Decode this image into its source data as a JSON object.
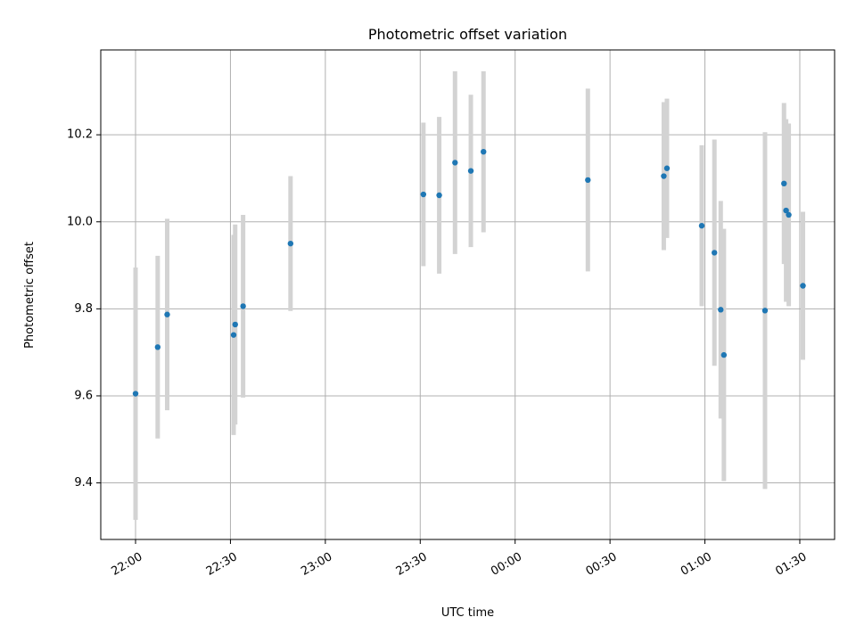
{
  "chart_data": {
    "type": "scatter",
    "title": "Photometric offset variation",
    "xlabel": "UTC time",
    "ylabel": "Photometric offset",
    "grid": true,
    "x_unit": "time (HH:MM), spanning midnight",
    "xlim": [
      "21:49",
      "01:41"
    ],
    "ylim": [
      9.27,
      10.395
    ],
    "x_ticks": [
      "22:00",
      "22:30",
      "23:00",
      "23:30",
      "00:00",
      "00:30",
      "01:00",
      "01:30"
    ],
    "y_ticks": [
      "9.4",
      "9.6",
      "9.8",
      "10.0",
      "10.2"
    ],
    "colors": {
      "point": "#1f77b4",
      "errorbar": "#d3d3d3"
    },
    "points": [
      {
        "x": "22:00",
        "y": 9.605,
        "yerr": 0.29
      },
      {
        "x": "22:07",
        "y": 9.712,
        "yerr": 0.21
      },
      {
        "x": "22:10",
        "y": 9.787,
        "yerr": 0.22
      },
      {
        "x": "22:31",
        "y": 9.74,
        "yerr": 0.23
      },
      {
        "x": "22:31:30",
        "y": 9.764,
        "yerr": 0.23
      },
      {
        "x": "22:34",
        "y": 9.806,
        "yerr": 0.21
      },
      {
        "x": "22:49",
        "y": 9.95,
        "yerr": 0.155
      },
      {
        "x": "23:31",
        "y": 10.063,
        "yerr": 0.165
      },
      {
        "x": "23:36",
        "y": 10.061,
        "yerr": 0.18
      },
      {
        "x": "23:41",
        "y": 10.136,
        "yerr": 0.21
      },
      {
        "x": "23:46",
        "y": 10.117,
        "yerr": 0.175
      },
      {
        "x": "23:50",
        "y": 10.161,
        "yerr": 0.185
      },
      {
        "x": "00:23",
        "y": 10.096,
        "yerr": 0.21
      },
      {
        "x": "00:47",
        "y": 10.105,
        "yerr": 0.17
      },
      {
        "x": "00:48",
        "y": 10.123,
        "yerr": 0.16
      },
      {
        "x": "00:59",
        "y": 9.991,
        "yerr": 0.185
      },
      {
        "x": "01:03",
        "y": 9.929,
        "yerr": 0.26
      },
      {
        "x": "01:05",
        "y": 9.798,
        "yerr": 0.25
      },
      {
        "x": "01:06",
        "y": 9.694,
        "yerr": 0.29
      },
      {
        "x": "01:19",
        "y": 9.796,
        "yerr": 0.41
      },
      {
        "x": "01:25",
        "y": 10.088,
        "yerr": 0.185
      },
      {
        "x": "01:25:40",
        "y": 10.026,
        "yerr": 0.21
      },
      {
        "x": "01:26:30",
        "y": 10.016,
        "yerr": 0.21
      },
      {
        "x": "01:31",
        "y": 9.853,
        "yerr": 0.17
      }
    ]
  }
}
